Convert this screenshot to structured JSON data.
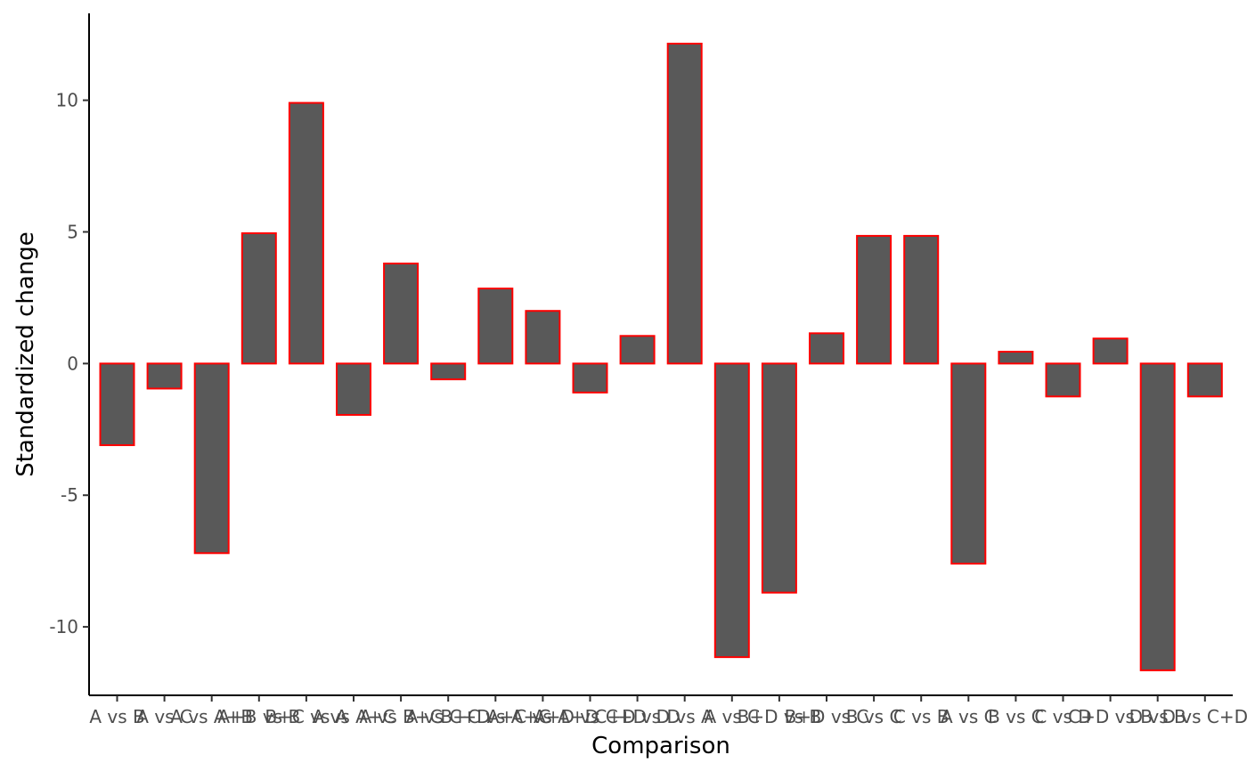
{
  "chart_data": {
    "type": "bar",
    "xlabel": "Comparison",
    "ylabel": "Standardized change",
    "ylim": [
      -12.6,
      13.3
    ],
    "yticks": [
      10,
      5,
      0,
      -5,
      -10
    ],
    "ytick_labels": [
      "10",
      "5",
      "0",
      "-5",
      "-10"
    ],
    "grid": false,
    "bar_fill": "#595959",
    "bar_stroke": "#ff0000",
    "categories": [
      "A vs B",
      "A vs C",
      "A vs A+B",
      "A+B vs B",
      "B+C vs A",
      "A vs A+C",
      "A vs B+C",
      "A vs C+D",
      "B+C vs A+C",
      "A+C vs A+D",
      "A+D vs C+D",
      "C+D vs D",
      "D vs A",
      "A vs C",
      "B+D vs B",
      "B+D vs C",
      "B vs C",
      "C vs B",
      "A vs C",
      "B vs C",
      "C vs D",
      "C+D vs B",
      "D vs B",
      "D vs C+D"
    ],
    "values": [
      -3.1,
      -0.95,
      -7.2,
      4.95,
      9.9,
      -1.95,
      3.8,
      -0.6,
      2.85,
      2.0,
      -1.1,
      1.05,
      12.15,
      -11.15,
      -8.7,
      1.15,
      4.85,
      4.85,
      -7.6,
      0.45,
      -1.25,
      0.95,
      -11.65,
      -1.25
    ]
  }
}
